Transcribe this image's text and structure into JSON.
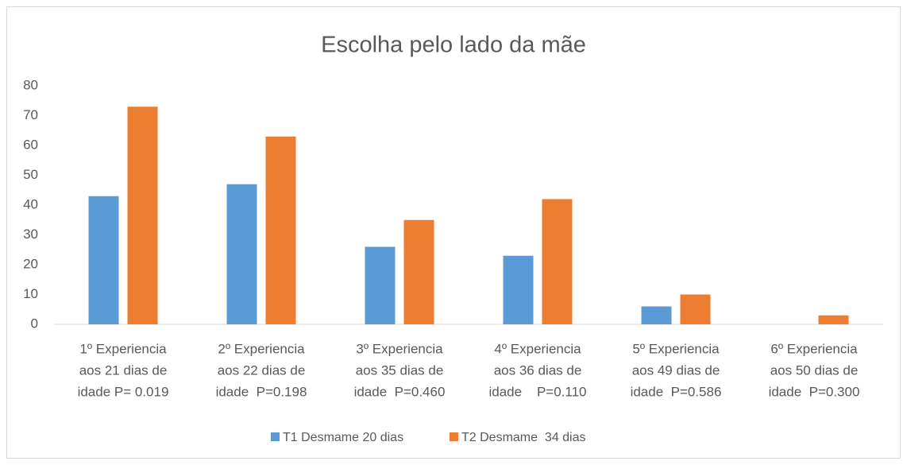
{
  "chart_data": {
    "type": "bar",
    "title": "Escolha pelo lado da mãe",
    "categories": [
      [
        "1º Experiencia",
        "aos 21 dias de",
        "idade P= 0.019"
      ],
      [
        "2º Experiencia",
        "aos 22 dias de",
        "idade  P=0.198"
      ],
      [
        "3º Experiencia",
        "aos 35 dias de",
        "idade  P=0.460"
      ],
      [
        "4º Experiencia",
        "aos 36 dias de",
        "idade    P=0.110"
      ],
      [
        "5º Experiencia",
        "aos 49 dias de",
        "idade  P=0.586"
      ],
      [
        "6º Experiencia",
        "aos 50 dias de",
        "idade  P=0.300"
      ]
    ],
    "series": [
      {
        "name": "T1 Desmame 20 dias",
        "color": "#5b9bd5",
        "values": [
          43,
          47,
          26,
          23,
          6,
          0
        ]
      },
      {
        "name": "T2 Desmame  34 dias",
        "color": "#ed7d31",
        "values": [
          73,
          63,
          35,
          42,
          10,
          3
        ]
      }
    ],
    "ylim": [
      0,
      80
    ],
    "yticks": [
      0,
      10,
      20,
      30,
      40,
      50,
      60,
      70,
      80
    ],
    "grid": false,
    "legend": "bottom"
  }
}
